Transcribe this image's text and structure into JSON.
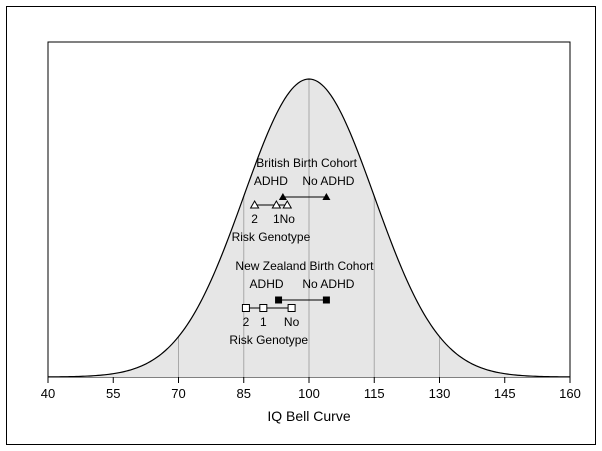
{
  "chart_data": {
    "type": "line",
    "xlabel": "IQ Bell Curve",
    "xlim": [
      40,
      160
    ],
    "xticks": [
      40,
      55,
      70,
      85,
      100,
      115,
      130,
      145,
      160
    ],
    "grid": "vertical gridlines at 70, 85, 100, 115, 130",
    "curve": {
      "name": "IQ Bell Curve",
      "mean": 100,
      "sd": 15,
      "fill": "#e6e6e6",
      "stroke": "#000000"
    },
    "groups": [
      {
        "title": "British Birth Cohort",
        "adhd_label": "ADHD",
        "no_adhd_label": "No ADHD",
        "adhd_iq": 94,
        "no_adhd_iq": 104,
        "marker": "filled-triangle",
        "genotype_axis_label": "Risk Genotype",
        "genotype": [
          {
            "label": "2",
            "iq": 87.5
          },
          {
            "label": "1",
            "iq": 92.5
          },
          {
            "label": "No",
            "iq": 95
          }
        ],
        "genotype_marker": "open-triangle"
      },
      {
        "title": "New Zealand Birth Cohort",
        "adhd_label": "ADHD",
        "no_adhd_label": "No ADHD",
        "adhd_iq": 93,
        "no_adhd_iq": 104,
        "marker": "filled-square",
        "genotype_axis_label": "Risk Genotype",
        "genotype": [
          {
            "label": "2",
            "iq": 85.5
          },
          {
            "label": "1",
            "iq": 89.5
          },
          {
            "label": "No",
            "iq": 96
          }
        ],
        "genotype_marker": "open-square"
      }
    ]
  }
}
